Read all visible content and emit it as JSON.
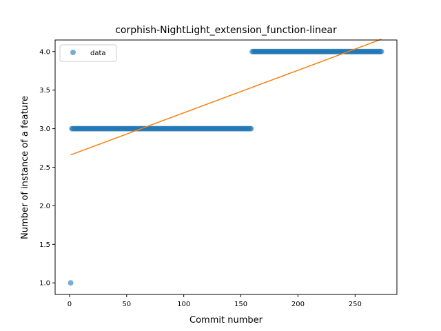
{
  "chart_data": {
    "type": "scatter",
    "title": "corphish-NightLight_extension_function-linear",
    "xlabel": "Commit number",
    "ylabel": "Number of instance of a feature",
    "xlim": [
      -12.6,
      286.6
    ],
    "ylim": [
      0.85,
      4.15
    ],
    "x_ticks": [
      0,
      50,
      100,
      150,
      200,
      250
    ],
    "y_ticks": [
      1.0,
      1.5,
      2.0,
      2.5,
      3.0,
      3.5,
      4.0,
      4.5
    ],
    "x_tick_labels": [
      "0",
      "50",
      "100",
      "150",
      "200",
      "250"
    ],
    "y_tick_labels": [
      "1.0",
      "1.5",
      "2.0",
      "2.5",
      "3.0",
      "3.5",
      "4.0"
    ],
    "grid": false,
    "legend_position": "top-left",
    "series": [
      {
        "name": "data",
        "kind": "points",
        "color": "#1f77b4",
        "opacity": 0.6,
        "segments": [
          {
            "x_start": 1,
            "x_end": 1,
            "y": 1.0
          },
          {
            "x_start": 2,
            "x_end": 159,
            "y": 3.0
          },
          {
            "x_start": 160,
            "x_end": 273,
            "y": 4.0
          }
        ]
      },
      {
        "kind": "line",
        "color": "#ff7f0e",
        "points": [
          [
            1,
            2.66
          ],
          [
            273,
            4.16
          ]
        ]
      }
    ]
  }
}
